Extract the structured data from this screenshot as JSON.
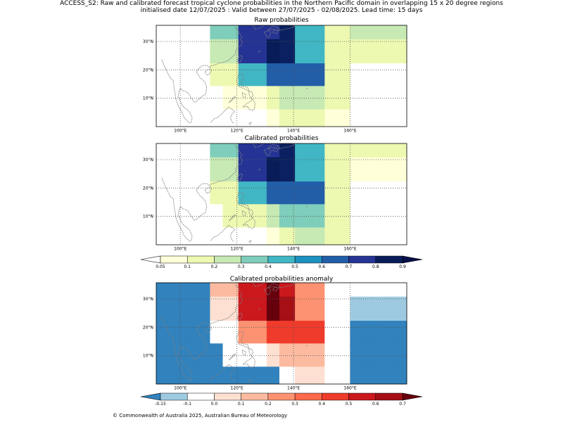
{
  "header": {
    "line1": "ACCESS_S2: Raw and calibrated forecast tropical cyclone probabilities in the Northern Pacific domain in overlapping 15 x 20 degree regions",
    "line2": "initialised date 12/07/2025 :  Valid between 27/07/2025 - 02/08/2025. Lead time: 15 days"
  },
  "footer": "© Commonwealth of Australia 2025, Australian Bureau of Meteorology",
  "axes": {
    "lon_labels": [
      "100°E",
      "120°E",
      "140°E",
      "160°E"
    ],
    "lon_values": [
      100,
      120,
      140,
      160
    ],
    "lat_labels": [
      "10°N",
      "20°N",
      "30°N"
    ],
    "lat_values": [
      10,
      20,
      30
    ],
    "lon_range": [
      91.5,
      180
    ],
    "lat_range": [
      0,
      35.7
    ]
  },
  "colors": {
    "coast": "#808080",
    "prob": [
      "#ffffd9",
      "#edf8b1",
      "#c7e9b4",
      "#7fcdbb",
      "#41b6c4",
      "#1d91c0",
      "#225ea8",
      "#253494",
      "#081d58"
    ],
    "prob_under": "#ffffff",
    "prob_over": "#06104a",
    "anom": [
      "#9ecae1",
      "#ffffff",
      "#fee0d2",
      "#fcbba1",
      "#fc9272",
      "#fb6a4a",
      "#ef3b2c",
      "#cb181d",
      "#a50f15"
    ],
    "anom_under": "#3182bd",
    "anom_over": "#67000d"
  },
  "colorbars": {
    "prob_ticks": [
      "0.05",
      "0.1",
      "0.2",
      "0.3",
      "0.4",
      "0.5",
      "0.6",
      "0.7",
      "0.8",
      "0.9"
    ],
    "anom_ticks": [
      "-0.15",
      "-0.1",
      "0.0",
      "0.1",
      "0.2",
      "0.3",
      "0.4",
      "0.5",
      "0.6",
      "0.7"
    ]
  },
  "chart_data": [
    {
      "type": "heatmap",
      "title": "Raw probabilities",
      "cell_colors": [
        [
          "#ffffff",
          "#ffffff",
          "#7fcdbb",
          "#7fcdbb",
          "#253494",
          "#253494",
          "#253494",
          "#0a2060",
          "#41b6c4",
          "#41b6c4",
          "#edf8b1",
          "#edf8b1",
          "#c7e9b4",
          "#c7e9b4",
          "#c7e9b4",
          "#c7e9b4",
          "#c7e9b4",
          "#c7e9b4"
        ],
        [
          "#ffffff",
          "#ffffff",
          "#c7e9b4",
          "#c7e9b4",
          "#253494",
          "#253494",
          "#081d58",
          "#0a2060",
          "#41b6c4",
          "#41b6c4",
          "#edf8b1",
          "#edf8b1",
          "#edf8b1",
          "#edf8b1",
          "#edf8b1",
          "#edf8b1",
          "#edf8b1",
          "#edf8b1"
        ],
        [
          "#ffffff",
          "#ffffff",
          "#edf8b1",
          "#edf8b1",
          "#41b6c4",
          "#41b6c4",
          "#225ea8",
          "#225ea8",
          "#225ea8",
          "#225ea8",
          "#edf8b1",
          "#edf8b1",
          "#ffffff",
          "#ffffff",
          "#ffffff",
          "#ffffff",
          "#ffffff",
          "#ffffff"
        ],
        [
          "#ffffff",
          "#ffffff",
          "#ffffff",
          "#ffffd9",
          "#ffffd9",
          "#ffffd9",
          "#edf8b1",
          "#c7e9b4",
          "#c7e9b4",
          "#c7e9b4",
          "#edf8b1",
          "#edf8b1",
          "#ffffff",
          "#ffffff",
          "#ffffff",
          "#ffffff",
          "#ffffff",
          "#ffffff"
        ],
        [
          "#ffffff",
          "#ffffff",
          "#ffffff",
          "#ffffff",
          "#ffffff",
          "#ffffff",
          "#ffffd9",
          "#edf8b1",
          "#edf8b1",
          "#edf8b1",
          "#ffffd9",
          "#ffffd9",
          "#ffffff",
          "#ffffff",
          "#ffffff",
          "#ffffff",
          "#ffffff",
          "#ffffff"
        ]
      ]
    },
    {
      "type": "heatmap",
      "title": "Calibrated probabilities",
      "cell_colors": [
        [
          "#ffffff",
          "#ffffff",
          "#7fcdbb",
          "#7fcdbb",
          "#253494",
          "#253494",
          "#253494",
          "#0a2060",
          "#41b6c4",
          "#41b6c4",
          "#edf8b1",
          "#edf8b1",
          "#edf8b1",
          "#edf8b1",
          "#edf8b1",
          "#edf8b1",
          "#edf8b1",
          "#edf8b1"
        ],
        [
          "#ffffff",
          "#ffffff",
          "#c7e9b4",
          "#c7e9b4",
          "#253494",
          "#253494",
          "#081d58",
          "#0a2060",
          "#41b6c4",
          "#41b6c4",
          "#edf8b1",
          "#edf8b1",
          "#ffffd9",
          "#ffffd9",
          "#ffffd9",
          "#ffffd9",
          "#ffffd9",
          "#ffffd9"
        ],
        [
          "#ffffff",
          "#ffffff",
          "#edf8b1",
          "#edf8b1",
          "#41b6c4",
          "#41b6c4",
          "#225ea8",
          "#225ea8",
          "#225ea8",
          "#225ea8",
          "#edf8b1",
          "#edf8b1",
          "#ffffff",
          "#ffffff",
          "#ffffff",
          "#ffffff",
          "#ffffff",
          "#ffffff"
        ],
        [
          "#ffffff",
          "#ffffff",
          "#ffffff",
          "#edf8b1",
          "#edf8b1",
          "#edf8b1",
          "#c7e9b4",
          "#7fcdbb",
          "#7fcdbb",
          "#7fcdbb",
          "#edf8b1",
          "#edf8b1",
          "#ffffff",
          "#ffffff",
          "#ffffff",
          "#ffffff",
          "#ffffff",
          "#ffffff"
        ],
        [
          "#ffffff",
          "#ffffff",
          "#ffffff",
          "#ffffff",
          "#ffffff",
          "#ffffff",
          "#ffffd9",
          "#edf8b1",
          "#c7e9b4",
          "#c7e9b4",
          "#edf8b1",
          "#edf8b1",
          "#ffffff",
          "#ffffff",
          "#ffffff",
          "#ffffff",
          "#ffffff",
          "#ffffff"
        ]
      ]
    },
    {
      "type": "heatmap",
      "title": "Calibrated probabilities anomaly",
      "cell_colors": [
        [
          "#3182bd",
          "#3182bd",
          "#fcbba1",
          "#fcbba1",
          "#cb181d",
          "#cb181d",
          "#67000d",
          "#cb181d",
          "#fc9272",
          "#fc9272",
          "#ffffff",
          "#ffffff",
          "#ffffff",
          "#ffffff",
          "#ffffff",
          "#ffffff",
          "#ffffff",
          "#ffffff"
        ],
        [
          "#3182bd",
          "#3182bd",
          "#fee0d2",
          "#fee0d2",
          "#cb181d",
          "#cb181d",
          "#67000d",
          "#a50f15",
          "#fc9272",
          "#fc9272",
          "#ffffff",
          "#ffffff",
          "#9ecae1",
          "#9ecae1",
          "#9ecae1",
          "#9ecae1",
          "#9ecae1",
          "#9ecae1"
        ],
        [
          "#3182bd",
          "#3182bd",
          "#ffffff",
          "#ffffff",
          "#fc9272",
          "#fc9272",
          "#ef3b2c",
          "#ef3b2c",
          "#ef3b2c",
          "#ef3b2c",
          "#ffffff",
          "#ffffff",
          "#3182bd",
          "#3182bd",
          "#3182bd",
          "#3182bd",
          "#3182bd",
          "#3182bd"
        ],
        [
          "#3182bd",
          "#3182bd",
          "#3182bd",
          "#ffffff",
          "#ffffff",
          "#ffffff",
          "#fee0d2",
          "#fcbba1",
          "#fcbba1",
          "#fcbba1",
          "#ffffff",
          "#ffffff",
          "#3182bd",
          "#3182bd",
          "#3182bd",
          "#3182bd",
          "#3182bd",
          "#3182bd"
        ],
        [
          "#3182bd",
          "#3182bd",
          "#3182bd",
          "#3182bd",
          "#3182bd",
          "#3182bd",
          "#3182bd",
          "#ffffff",
          "#fee0d2",
          "#fee0d2",
          "#ffffff",
          "#ffffff",
          "#3182bd",
          "#3182bd",
          "#3182bd",
          "#3182bd",
          "#3182bd",
          "#3182bd"
        ]
      ]
    }
  ]
}
